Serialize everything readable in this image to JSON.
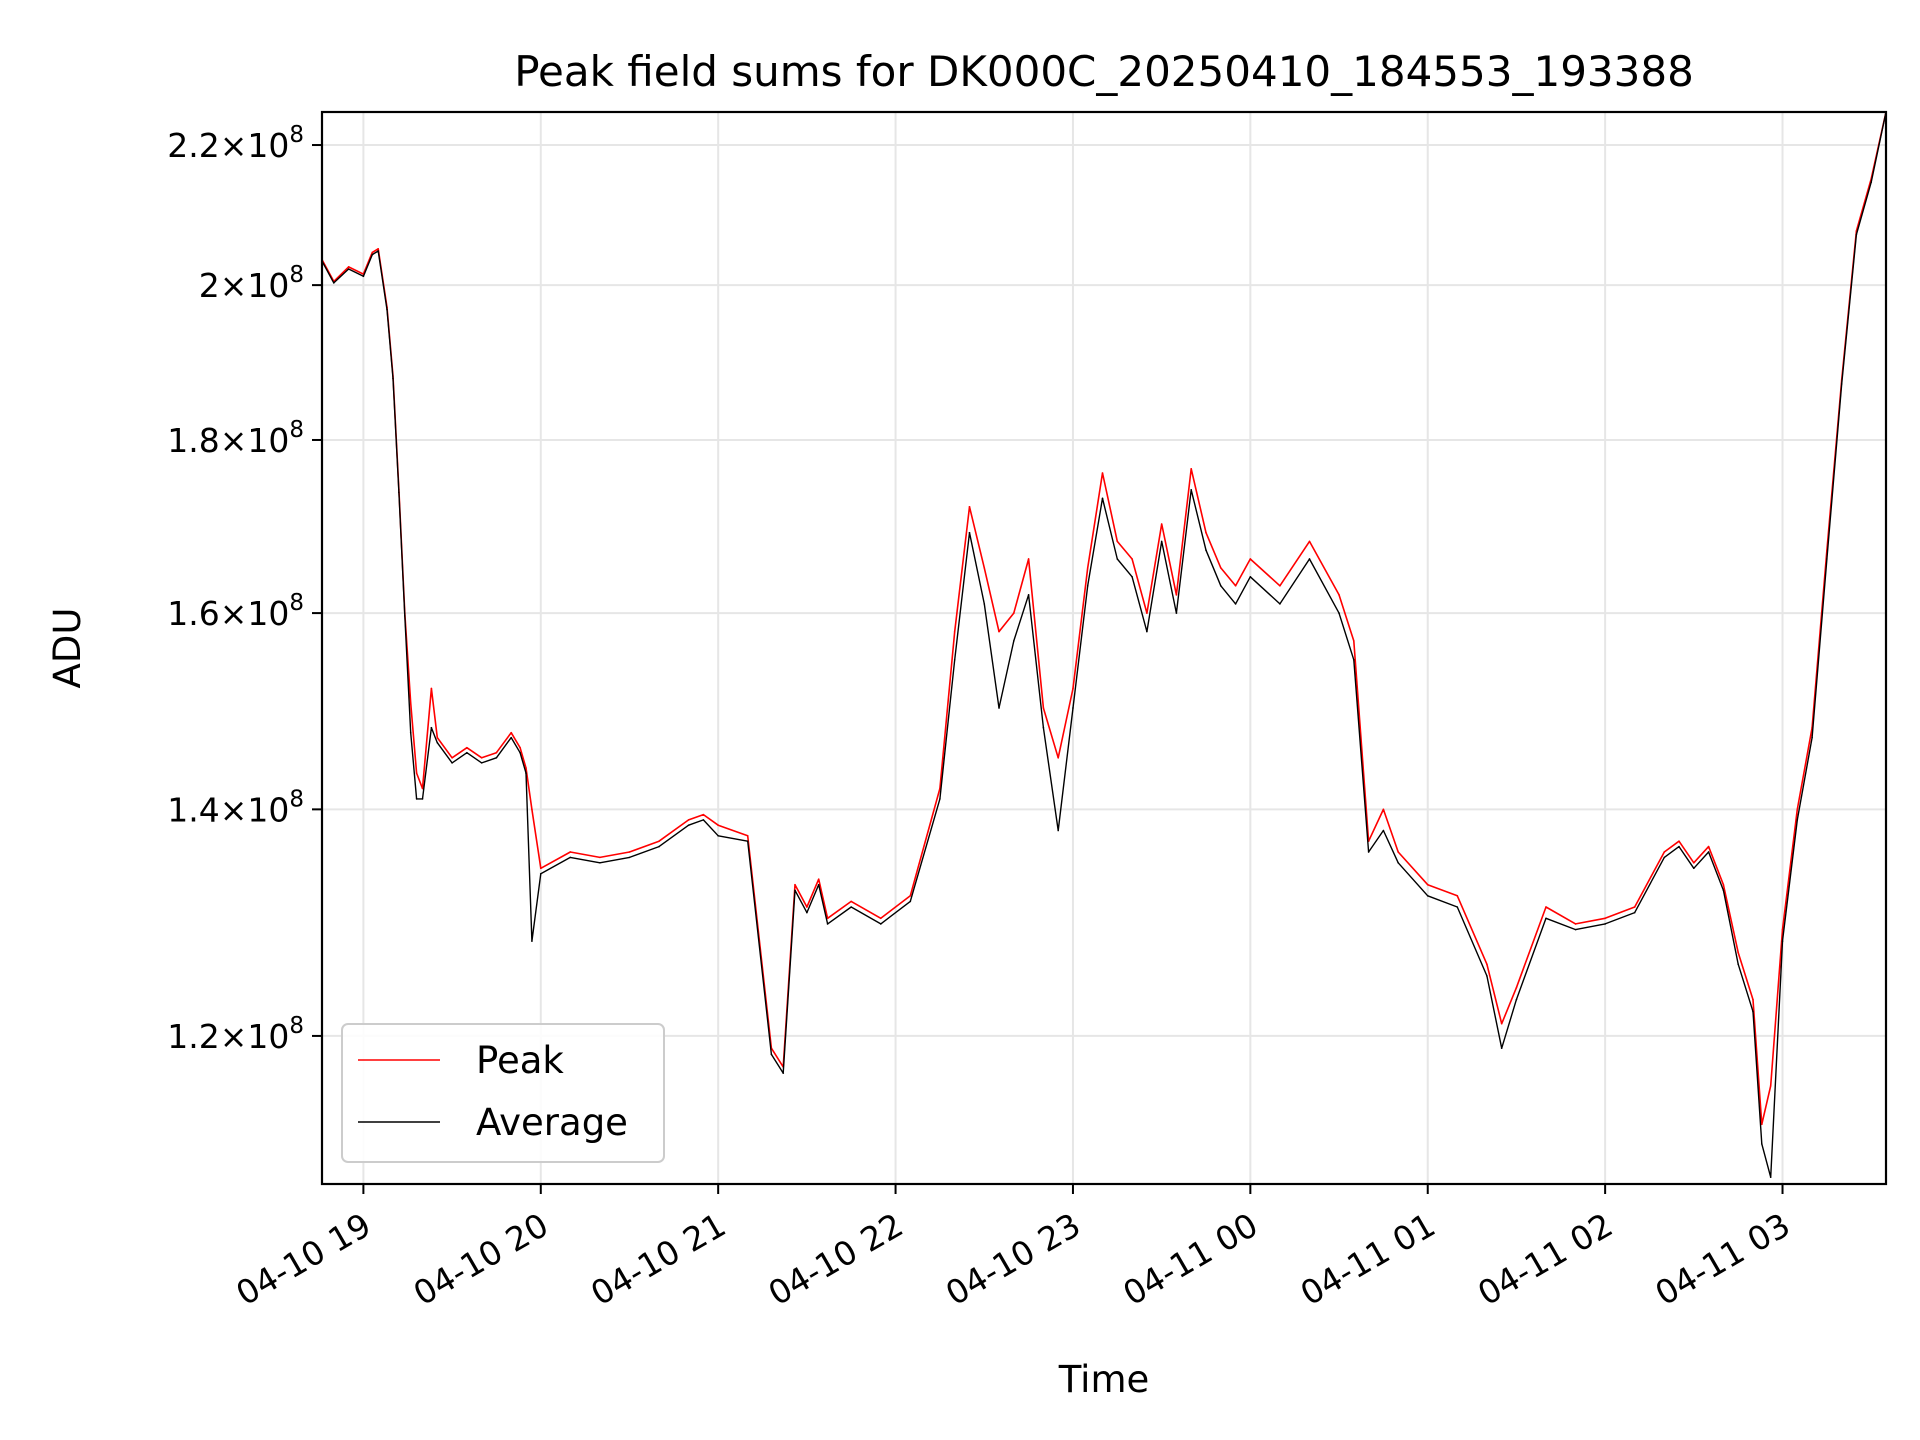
{
  "chart_data": {
    "type": "line",
    "title": "Peak field sums for DK000C_20250410_184553_193388",
    "xlabel": "Time",
    "ylabel": "ADU",
    "y_scale": "log",
    "ylim": [
      108500000,
      225000000
    ],
    "xlim": [
      "2025-04-10 18:46",
      "2025-04-11 03:35"
    ],
    "grid": true,
    "legend_position": "lower left",
    "x_ticks": [
      "04-10 19",
      "04-10 20",
      "04-10 21",
      "04-10 22",
      "04-10 23",
      "04-11 00",
      "04-11 01",
      "04-11 02",
      "04-11 03"
    ],
    "y_ticks": [
      {
        "value": 120000000,
        "mantissa": "1.2",
        "exponent": "8"
      },
      {
        "value": 140000000,
        "mantissa": "1.4",
        "exponent": "8"
      },
      {
        "value": 160000000,
        "mantissa": "1.6",
        "exponent": "8"
      },
      {
        "value": 180000000,
        "mantissa": "1.8",
        "exponent": "8"
      },
      {
        "value": 200000000,
        "mantissa": "2",
        "exponent": "8"
      },
      {
        "value": 220000000,
        "mantissa": "2.2",
        "exponent": "8"
      }
    ],
    "series": [
      {
        "name": "Peak",
        "color": "#ff0000",
        "x": [
          "2025-04-10 18:46",
          "2025-04-10 18:50",
          "2025-04-10 18:55",
          "2025-04-10 19:00",
          "2025-04-10 19:03",
          "2025-04-10 19:05",
          "2025-04-10 19:08",
          "2025-04-10 19:10",
          "2025-04-10 19:12",
          "2025-04-10 19:14",
          "2025-04-10 19:16",
          "2025-04-10 19:18",
          "2025-04-10 19:20",
          "2025-04-10 19:23",
          "2025-04-10 19:25",
          "2025-04-10 19:30",
          "2025-04-10 19:35",
          "2025-04-10 19:40",
          "2025-04-10 19:45",
          "2025-04-10 19:50",
          "2025-04-10 19:53",
          "2025-04-10 19:55",
          "2025-04-10 19:57",
          "2025-04-10 20:00",
          "2025-04-10 20:10",
          "2025-04-10 20:20",
          "2025-04-10 20:30",
          "2025-04-10 20:40",
          "2025-04-10 20:50",
          "2025-04-10 20:55",
          "2025-04-10 21:00",
          "2025-04-10 21:10",
          "2025-04-10 21:18",
          "2025-04-10 21:22",
          "2025-04-10 21:26",
          "2025-04-10 21:30",
          "2025-04-10 21:34",
          "2025-04-10 21:37",
          "2025-04-10 21:45",
          "2025-04-10 21:55",
          "2025-04-10 22:05",
          "2025-04-10 22:15",
          "2025-04-10 22:20",
          "2025-04-10 22:25",
          "2025-04-10 22:30",
          "2025-04-10 22:35",
          "2025-04-10 22:40",
          "2025-04-10 22:45",
          "2025-04-10 22:50",
          "2025-04-10 22:55",
          "2025-04-10 23:00",
          "2025-04-10 23:05",
          "2025-04-10 23:10",
          "2025-04-10 23:15",
          "2025-04-10 23:20",
          "2025-04-10 23:25",
          "2025-04-10 23:30",
          "2025-04-10 23:35",
          "2025-04-10 23:40",
          "2025-04-10 23:45",
          "2025-04-10 23:50",
          "2025-04-10 23:55",
          "2025-04-11 00:00",
          "2025-04-11 00:10",
          "2025-04-11 00:20",
          "2025-04-11 00:30",
          "2025-04-11 00:35",
          "2025-04-11 00:40",
          "2025-04-11 00:45",
          "2025-04-11 00:50",
          "2025-04-11 01:00",
          "2025-04-11 01:10",
          "2025-04-11 01:20",
          "2025-04-11 01:25",
          "2025-04-11 01:30",
          "2025-04-11 01:40",
          "2025-04-11 01:50",
          "2025-04-11 02:00",
          "2025-04-11 02:10",
          "2025-04-11 02:20",
          "2025-04-11 02:25",
          "2025-04-11 02:30",
          "2025-04-11 02:35",
          "2025-04-11 02:40",
          "2025-04-11 02:45",
          "2025-04-11 02:50",
          "2025-04-11 02:53",
          "2025-04-11 02:56",
          "2025-04-11 03:00",
          "2025-04-11 03:05",
          "2025-04-11 03:10",
          "2025-04-11 03:15",
          "2025-04-11 03:20",
          "2025-04-11 03:25",
          "2025-04-11 03:30",
          "2025-04-11 03:35"
        ],
        "values": [
          203500000,
          200500000,
          202500000,
          201500000,
          204500000,
          205000000,
          197000000,
          188000000,
          174000000,
          160000000,
          150500000,
          143500000,
          142000000,
          152000000,
          147000000,
          145000000,
          146000000,
          145000000,
          145500000,
          147500000,
          146000000,
          144000000,
          140000000,
          134500000,
          136000000,
          135500000,
          136000000,
          137000000,
          139000000,
          139500000,
          138500000,
          137500000,
          119000000,
          117500000,
          133000000,
          131000000,
          133500000,
          130000000,
          131500000,
          130000000,
          132000000,
          142000000,
          158000000,
          172000000,
          165000000,
          158000000,
          160000000,
          166000000,
          150000000,
          145000000,
          152000000,
          165000000,
          176000000,
          168000000,
          166000000,
          160000000,
          170000000,
          162000000,
          176500000,
          169000000,
          165000000,
          163000000,
          166000000,
          163000000,
          168000000,
          162000000,
          157000000,
          137000000,
          140000000,
          136000000,
          133000000,
          132000000,
          126000000,
          121000000,
          124000000,
          131000000,
          129500000,
          130000000,
          131000000,
          136000000,
          137000000,
          135000000,
          136500000,
          133000000,
          127000000,
          123000000,
          113000000,
          116000000,
          129000000,
          140000000,
          148000000,
          167000000,
          187500000,
          207500000,
          215000000,
          225000000
        ]
      },
      {
        "name": "Average",
        "color": "#000000",
        "x": [
          "2025-04-10 18:46",
          "2025-04-10 18:50",
          "2025-04-10 18:55",
          "2025-04-10 19:00",
          "2025-04-10 19:03",
          "2025-04-10 19:05",
          "2025-04-10 19:08",
          "2025-04-10 19:10",
          "2025-04-10 19:12",
          "2025-04-10 19:14",
          "2025-04-10 19:16",
          "2025-04-10 19:18",
          "2025-04-10 19:20",
          "2025-04-10 19:23",
          "2025-04-10 19:25",
          "2025-04-10 19:30",
          "2025-04-10 19:35",
          "2025-04-10 19:40",
          "2025-04-10 19:45",
          "2025-04-10 19:50",
          "2025-04-10 19:53",
          "2025-04-10 19:55",
          "2025-04-10 19:57",
          "2025-04-10 20:00",
          "2025-04-10 20:10",
          "2025-04-10 20:20",
          "2025-04-10 20:30",
          "2025-04-10 20:40",
          "2025-04-10 20:50",
          "2025-04-10 20:55",
          "2025-04-10 21:00",
          "2025-04-10 21:10",
          "2025-04-10 21:18",
          "2025-04-10 21:22",
          "2025-04-10 21:26",
          "2025-04-10 21:30",
          "2025-04-10 21:34",
          "2025-04-10 21:37",
          "2025-04-10 21:45",
          "2025-04-10 21:55",
          "2025-04-10 22:05",
          "2025-04-10 22:15",
          "2025-04-10 22:20",
          "2025-04-10 22:25",
          "2025-04-10 22:30",
          "2025-04-10 22:35",
          "2025-04-10 22:40",
          "2025-04-10 22:45",
          "2025-04-10 22:50",
          "2025-04-10 22:55",
          "2025-04-10 23:00",
          "2025-04-10 23:05",
          "2025-04-10 23:10",
          "2025-04-10 23:15",
          "2025-04-10 23:20",
          "2025-04-10 23:25",
          "2025-04-10 23:30",
          "2025-04-10 23:35",
          "2025-04-10 23:40",
          "2025-04-10 23:45",
          "2025-04-10 23:50",
          "2025-04-10 23:55",
          "2025-04-11 00:00",
          "2025-04-11 00:10",
          "2025-04-11 00:20",
          "2025-04-11 00:30",
          "2025-04-11 00:35",
          "2025-04-11 00:40",
          "2025-04-11 00:45",
          "2025-04-11 00:50",
          "2025-04-11 01:00",
          "2025-04-11 01:10",
          "2025-04-11 01:20",
          "2025-04-11 01:25",
          "2025-04-11 01:30",
          "2025-04-11 01:40",
          "2025-04-11 01:50",
          "2025-04-11 02:00",
          "2025-04-11 02:10",
          "2025-04-11 02:20",
          "2025-04-11 02:25",
          "2025-04-11 02:30",
          "2025-04-11 02:35",
          "2025-04-11 02:40",
          "2025-04-11 02:45",
          "2025-04-11 02:50",
          "2025-04-11 02:53",
          "2025-04-11 02:56",
          "2025-04-11 03:00",
          "2025-04-11 03:05",
          "2025-04-11 03:10",
          "2025-04-11 03:15",
          "2025-04-11 03:20",
          "2025-04-11 03:25",
          "2025-04-11 03:30",
          "2025-04-11 03:35"
        ],
        "values": [
          203300000,
          200300000,
          202200000,
          201200000,
          204200000,
          204700000,
          196700000,
          187700000,
          173700000,
          159700000,
          147500000,
          141000000,
          141000000,
          148000000,
          146500000,
          144500000,
          145500000,
          144500000,
          145000000,
          147000000,
          145500000,
          143500000,
          128000000,
          134000000,
          135500000,
          135000000,
          135500000,
          136500000,
          138500000,
          139000000,
          137500000,
          137000000,
          118500000,
          117000000,
          132500000,
          130500000,
          133000000,
          129500000,
          131000000,
          129500000,
          131500000,
          141000000,
          155000000,
          169000000,
          161000000,
          150000000,
          157000000,
          162000000,
          148000000,
          138000000,
          150000000,
          163000000,
          173000000,
          166000000,
          164000000,
          158000000,
          168000000,
          160000000,
          174000000,
          167000000,
          163000000,
          161000000,
          164000000,
          161000000,
          166000000,
          160000000,
          155000000,
          136000000,
          138000000,
          135000000,
          132000000,
          131000000,
          125000000,
          119000000,
          123000000,
          130000000,
          129000000,
          129500000,
          130500000,
          135500000,
          136500000,
          134500000,
          136000000,
          132500000,
          126000000,
          122000000,
          111500000,
          109000000,
          128000000,
          139000000,
          147000000,
          166000000,
          187000000,
          207000000,
          214500000,
          225000000
        ]
      }
    ]
  }
}
